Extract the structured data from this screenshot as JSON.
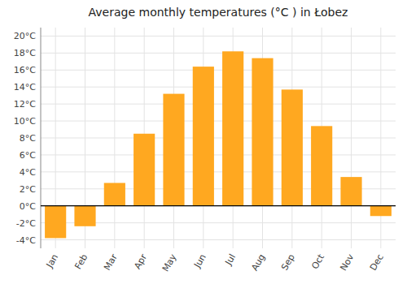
{
  "chart_data": {
    "type": "bar",
    "title": "Average monthly temperatures (°C ) in Łobez",
    "categories": [
      "Jan",
      "Feb",
      "Mar",
      "Apr",
      "May",
      "Jun",
      "Jul",
      "Aug",
      "Sep",
      "Oct",
      "Nov",
      "Dec"
    ],
    "values": [
      -3.8,
      -2.4,
      2.7,
      8.5,
      13.2,
      16.4,
      18.2,
      17.4,
      13.7,
      9.4,
      3.4,
      -1.2
    ],
    "color": "#FFA820",
    "ylim": [
      -5,
      21
    ],
    "yticks": [
      {
        "value": -4,
        "label": "-4°C"
      },
      {
        "value": -2,
        "label": "-2°C"
      },
      {
        "value": 0,
        "label": "0°C"
      },
      {
        "value": 2,
        "label": "2°C"
      },
      {
        "value": 4,
        "label": "4°C"
      },
      {
        "value": 6,
        "label": "6°C"
      },
      {
        "value": 8,
        "label": "8°C"
      },
      {
        "value": 10,
        "label": "10°C"
      },
      {
        "value": 12,
        "label": "12°C"
      },
      {
        "value": 14,
        "label": "14°C"
      },
      {
        "value": 16,
        "label": "16°C"
      },
      {
        "value": 18,
        "label": "18°C"
      },
      {
        "value": 20,
        "label": "20°C"
      }
    ],
    "grid": true
  }
}
